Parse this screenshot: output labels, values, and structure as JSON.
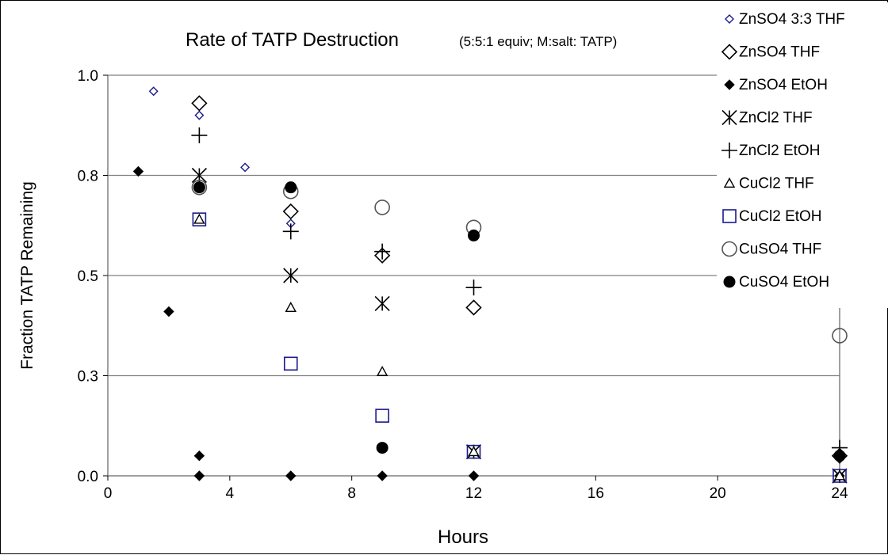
{
  "chart_data": {
    "type": "scatter",
    "title": "Rate of TATP Destruction",
    "subtitle": "(5:5:1 equiv; M:salt: TATP)",
    "xlabel": "Hours",
    "ylabel": "Fraction TATP Remaining",
    "xlim": [
      0,
      24
    ],
    "ylim": [
      0,
      1.0
    ],
    "x_ticks": [
      "0",
      "4",
      "8",
      "12",
      "16",
      "20",
      "24"
    ],
    "y_ticks": [
      "0.0",
      "0.3",
      "0.5",
      "0.8",
      "1.0"
    ],
    "grid": "horizontal",
    "legend_position": "top-right",
    "series": [
      {
        "name": "ZnSO4 3:3 THF",
        "marker": "diamond-small",
        "color": "#1a1a8c",
        "points": [
          [
            1.5,
            0.96
          ],
          [
            3,
            0.9
          ],
          [
            4.5,
            0.77
          ],
          [
            6,
            0.63
          ]
        ]
      },
      {
        "name": "ZnSO4 THF",
        "marker": "diamond-open",
        "color": "#000000",
        "points": [
          [
            3,
            0.93
          ],
          [
            6,
            0.66
          ],
          [
            9,
            0.55
          ],
          [
            12,
            0.42
          ],
          [
            24,
            0.05
          ]
        ]
      },
      {
        "name": "ZnSO4 EtOH",
        "marker": "diamond-filled",
        "color": "#000000",
        "points": [
          [
            1,
            0.76
          ],
          [
            2,
            0.41
          ],
          [
            3,
            0.05
          ],
          [
            3,
            0.0
          ],
          [
            6,
            0.0
          ],
          [
            9,
            0.0
          ],
          [
            12,
            0.0
          ],
          [
            24,
            0.05
          ],
          [
            24,
            0.0
          ]
        ]
      },
      {
        "name": "ZnCl2 THF",
        "marker": "asterisk",
        "color": "#000000",
        "points": [
          [
            3,
            0.75
          ],
          [
            6,
            0.5
          ],
          [
            9,
            0.43
          ],
          [
            12,
            0.06
          ],
          [
            24,
            0.0
          ]
        ]
      },
      {
        "name": "ZnCl2 EtOH",
        "marker": "plus",
        "color": "#000000",
        "points": [
          [
            3,
            0.85
          ],
          [
            6,
            0.61
          ],
          [
            9,
            0.56
          ],
          [
            12,
            0.47
          ],
          [
            24,
            0.07
          ]
        ]
      },
      {
        "name": "CuCl2 THF",
        "marker": "triangle-open",
        "color": "#000000",
        "points": [
          [
            3,
            0.64
          ],
          [
            6,
            0.42
          ],
          [
            9,
            0.26
          ],
          [
            12,
            0.06
          ],
          [
            24,
            0.0
          ]
        ]
      },
      {
        "name": "CuCl2 EtOH",
        "marker": "square-open",
        "color": "#1a1a8c",
        "points": [
          [
            3,
            0.64
          ],
          [
            6,
            0.28
          ],
          [
            9,
            0.15
          ],
          [
            12,
            0.06
          ],
          [
            24,
            0.0
          ]
        ]
      },
      {
        "name": "CuSO4 THF",
        "marker": "circle-open",
        "color": "#000000",
        "points": [
          [
            3,
            0.72
          ],
          [
            6,
            0.71
          ],
          [
            9,
            0.67
          ],
          [
            12,
            0.62
          ],
          [
            24,
            0.35
          ]
        ]
      },
      {
        "name": "CuSO4 EtOH",
        "marker": "circle-filled",
        "color": "#000000",
        "points": [
          [
            3,
            0.72
          ],
          [
            6,
            0.72
          ],
          [
            9,
            0.07
          ],
          [
            12,
            0.6
          ],
          [
            24,
            0.05
          ]
        ]
      }
    ]
  }
}
